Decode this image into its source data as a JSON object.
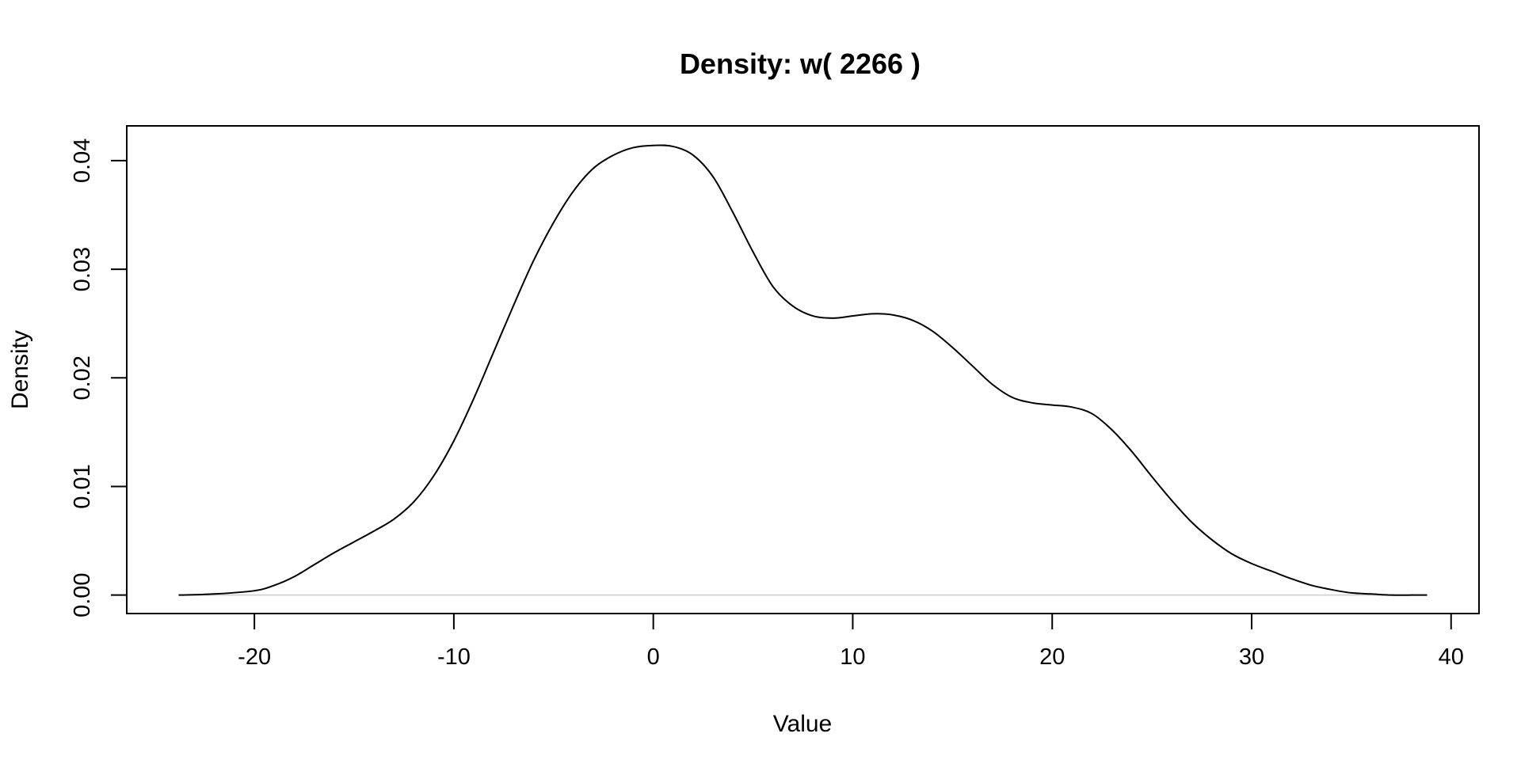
{
  "chart_data": {
    "type": "line",
    "title": "Density: w( 2266 )",
    "xlabel": "Value",
    "ylabel": "Density",
    "xlim": [
      -26.4,
      41.4
    ],
    "ylim": [
      -0.0017,
      0.0432
    ],
    "x_ticks": [
      "-20",
      "-10",
      "0",
      "10",
      "20",
      "30",
      "40"
    ],
    "y_ticks": [
      "0.00",
      "0.01",
      "0.02",
      "0.03",
      "0.04"
    ],
    "grid": false,
    "legend": "none",
    "line_color": "#000000",
    "baseline_color": "#cccccc",
    "series": [
      {
        "x": [
          -23.8,
          -22,
          -20,
          -19,
          -18,
          -17,
          -16,
          -15,
          -14,
          -13,
          -12,
          -11,
          -10,
          -9,
          -8,
          -7,
          -6,
          -5,
          -4,
          -3,
          -2,
          -1,
          0,
          1,
          2,
          3,
          4,
          5,
          6,
          7,
          8,
          9,
          10,
          11,
          12,
          13,
          14,
          15,
          16,
          17,
          18,
          19,
          20,
          21,
          22,
          23,
          24,
          25,
          26,
          27,
          28,
          29,
          30,
          31,
          32,
          33,
          34,
          35,
          36,
          37,
          38,
          38.8
        ],
        "y": [
          0.0,
          0.0001,
          0.0004,
          0.0009,
          0.0017,
          0.0028,
          0.0039,
          0.0049,
          0.0059,
          0.007,
          0.0086,
          0.011,
          0.0142,
          0.0181,
          0.0224,
          0.0267,
          0.0308,
          0.0343,
          0.0372,
          0.0393,
          0.0405,
          0.0412,
          0.0414,
          0.0413,
          0.0405,
          0.0385,
          0.0352,
          0.0316,
          0.0284,
          0.0266,
          0.0257,
          0.0255,
          0.0257,
          0.0259,
          0.0258,
          0.0253,
          0.0243,
          0.0228,
          0.0211,
          0.0194,
          0.0182,
          0.0177,
          0.0175,
          0.0173,
          0.0167,
          0.0152,
          0.0132,
          0.0109,
          0.0087,
          0.0067,
          0.0051,
          0.0038,
          0.0029,
          0.0022,
          0.0015,
          0.0009,
          0.0005,
          0.0002,
          0.0001,
          0.0,
          0.0,
          0.0
        ]
      }
    ]
  }
}
